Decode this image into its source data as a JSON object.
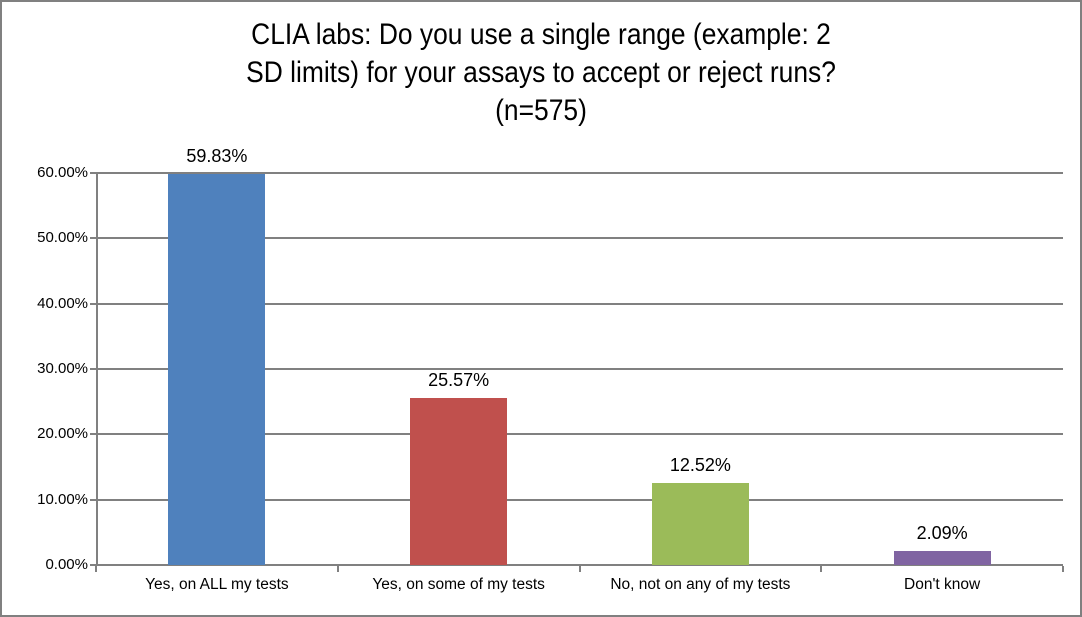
{
  "chart_data": {
    "type": "bar",
    "title": "CLIA labs: Do you use a single range (example: 2 SD limits) for your assays to accept or reject runs? (n=575)",
    "title_lines": [
      "CLIA labs: Do you use a single range (example: 2",
      "SD limits) for your assays to accept or reject runs?",
      "(n=575)"
    ],
    "categories": [
      "Yes, on ALL my tests",
      "Yes, on some of my tests",
      "No, not on any of my tests",
      "Don't know"
    ],
    "values": [
      59.83,
      25.57,
      12.52,
      2.09
    ],
    "data_labels": [
      "59.83%",
      "25.57%",
      "12.52%",
      "2.09%"
    ],
    "bar_colors": [
      "#4F81BD",
      "#C0504D",
      "#9BBB59",
      "#8064A2"
    ],
    "xlabel": "",
    "ylabel": "",
    "ylim": [
      0,
      60
    ],
    "yticks": [
      0,
      10,
      20,
      30,
      40,
      50,
      60
    ],
    "ytick_labels": [
      "0.00%",
      "10.00%",
      "20.00%",
      "30.00%",
      "40.00%",
      "50.00%",
      "60.00%"
    ],
    "grid": true,
    "gridline_color": "#808080",
    "axis_color": "#808080",
    "legend_position": "none",
    "background_color": "#FFFFFF",
    "border_color": "#808080"
  }
}
